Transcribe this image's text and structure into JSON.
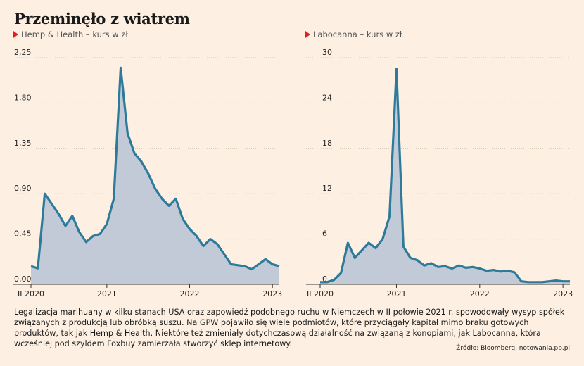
{
  "header": {
    "title": "Przeminęło z wiatrem"
  },
  "charts": {
    "left_subtitle": "Hemp & Health – kurs w zł",
    "right_subtitle": "Labocanna – kurs w zł"
  },
  "footer": {
    "description": "Legalizacja marihuany w kilku stanach USA oraz zapowiedź podobnego ruchu w Niemczech w II połowie 2021 r. spowodowały wysyp spółek związanych z produkcją lub obróbką suszu. Na GPW pojawiło się wiele podmiotów, które przyciągały kapitał mimo braku gotowych produktów, tak jak Hemp & Health. Niektóre też zmieniały dotychczasową działalność na związaną z konopiami, jak Labocanna, która wcześniej pod szyldem Foxbuy zamierzała stworzyć sklep internetowy.",
    "source": "Źródło: Bloomberg, notowania.pb.pl"
  },
  "colors": {
    "line": "#2d7a9a",
    "fill": "#c2cad8",
    "grid": "#cdbfae",
    "marker": "#e02020"
  },
  "chart_data": [
    {
      "type": "area",
      "series": [
        {
          "x": [
            "2020-02",
            "2020-03",
            "2020-04",
            "2020-05",
            "2020-06",
            "2020-07",
            "2020-08",
            "2020-09",
            "2020-10",
            "2020-11",
            "2020-12",
            "2021-01",
            "2021-02",
            "2021-03",
            "2021-04",
            "2021-05",
            "2021-06",
            "2021-07",
            "2021-08",
            "2021-09",
            "2021-10",
            "2021-11",
            "2021-12",
            "2022-01",
            "2022-02",
            "2022-03",
            "2022-04",
            "2022-05",
            "2022-06",
            "2022-07",
            "2022-08",
            "2022-09",
            "2022-10",
            "2022-11",
            "2022-12",
            "2023-01",
            "2023-02"
          ],
          "values": [
            0.18,
            0.16,
            0.9,
            0.8,
            0.7,
            0.58,
            0.68,
            0.52,
            0.42,
            0.48,
            0.5,
            0.6,
            0.85,
            2.15,
            1.5,
            1.3,
            1.22,
            1.1,
            0.95,
            0.85,
            0.78,
            0.85,
            0.65,
            0.55,
            0.48,
            0.38,
            0.45,
            0.4,
            0.3,
            0.2,
            0.19,
            0.18,
            0.15,
            0.2,
            0.25,
            0.2,
            0.18
          ]
        }
      ],
      "x_ticks": [
        "II 2020",
        "2021",
        "2022",
        "2023"
      ],
      "y_ticks": [
        "0,00",
        "0,45",
        "0,90",
        "1,35",
        "1,80",
        "2,25"
      ],
      "ylim": [
        0,
        2.25
      ],
      "grid": true
    },
    {
      "type": "area",
      "series": [
        {
          "x": [
            "2020-02",
            "2020-03",
            "2020-04",
            "2020-05",
            "2020-06",
            "2020-07",
            "2020-08",
            "2020-09",
            "2020-10",
            "2020-11",
            "2020-12",
            "2021-01",
            "2021-02",
            "2021-03",
            "2021-04",
            "2021-05",
            "2021-06",
            "2021-07",
            "2021-08",
            "2021-09",
            "2021-10",
            "2021-11",
            "2021-12",
            "2022-01",
            "2022-02",
            "2022-03",
            "2022-04",
            "2022-05",
            "2022-06",
            "2022-07",
            "2022-08",
            "2022-09",
            "2022-10",
            "2022-11",
            "2022-12",
            "2023-01",
            "2023-02"
          ],
          "values": [
            0.3,
            0.3,
            0.6,
            1.5,
            5.5,
            3.5,
            4.5,
            5.5,
            4.8,
            6.0,
            9.0,
            28.5,
            5.0,
            3.5,
            3.2,
            2.5,
            2.8,
            2.3,
            2.4,
            2.1,
            2.5,
            2.2,
            2.3,
            2.1,
            1.8,
            1.9,
            1.7,
            1.8,
            1.6,
            0.4,
            0.3,
            0.3,
            0.3,
            0.4,
            0.5,
            0.4,
            0.4
          ]
        }
      ],
      "x_ticks": [
        "II 2020",
        "2021",
        "2022",
        "2023"
      ],
      "y_ticks": [
        "0",
        "6",
        "12",
        "18",
        "24",
        "30"
      ],
      "ylim": [
        0,
        30
      ],
      "grid": true
    }
  ]
}
